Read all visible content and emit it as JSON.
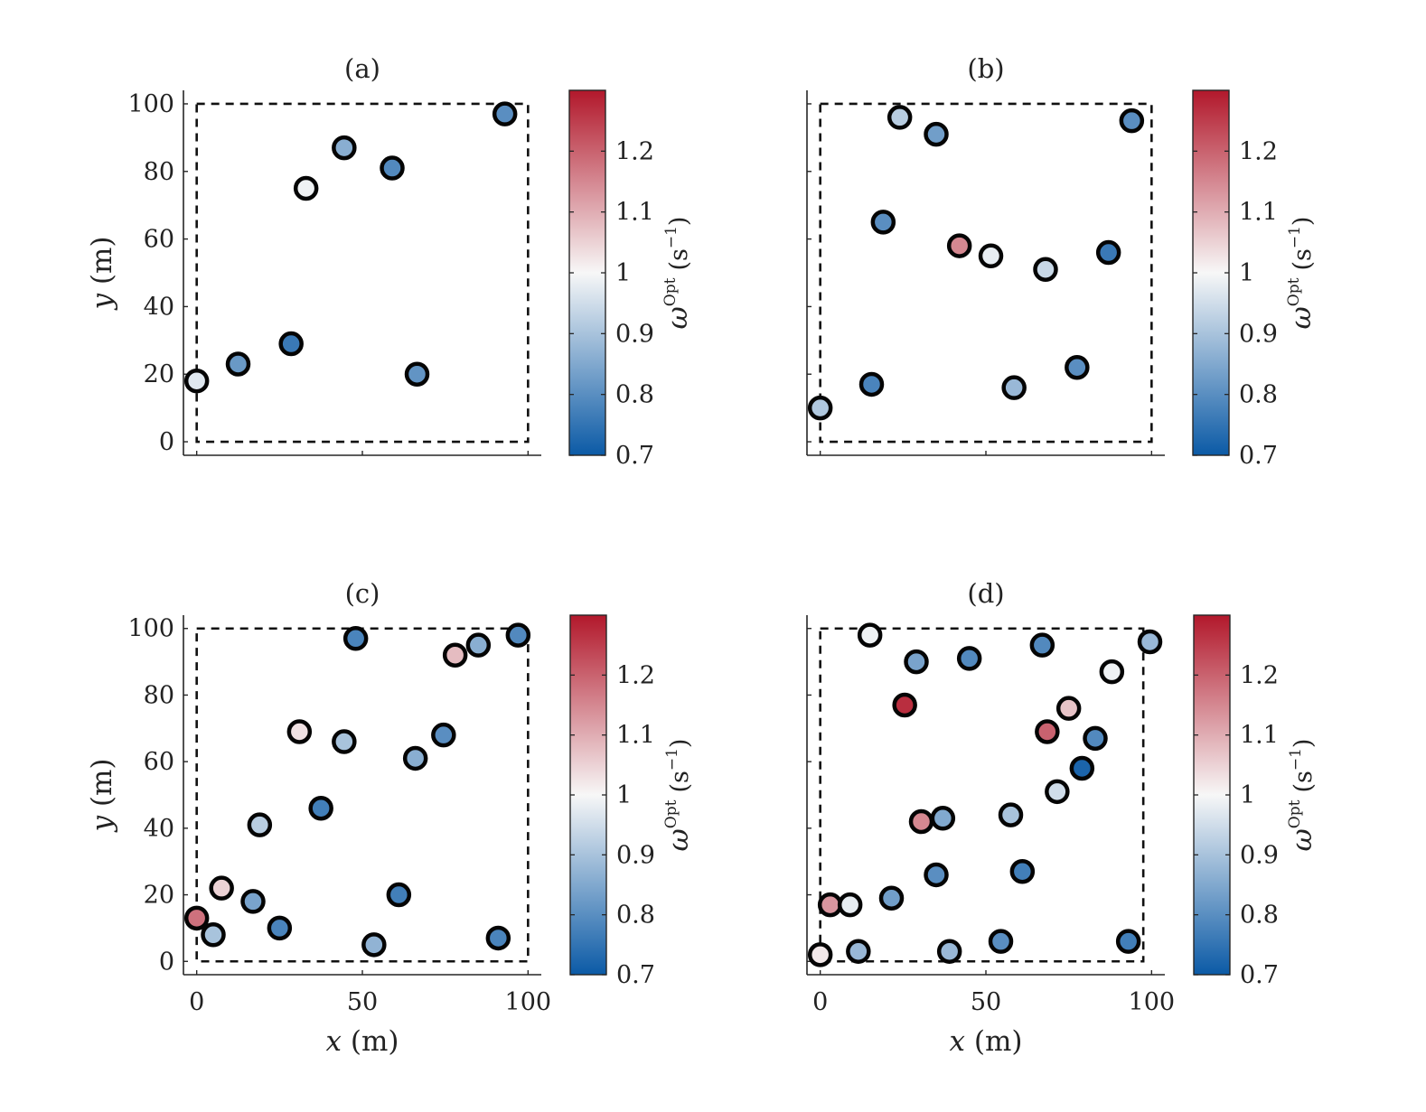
{
  "colormap": {
    "min": 0.7,
    "max": 1.3,
    "center": 1.0,
    "low_color": "#0b5aa6",
    "mid_color": "#f7f7f7",
    "high_color": "#b2182b",
    "ticks": [
      0.7,
      0.8,
      0.9,
      1,
      1.1,
      1.2
    ],
    "tick_labels": [
      "0.7",
      "0.8",
      "0.9",
      "1",
      "1.1",
      "1.2"
    ],
    "label_symbol": "ω",
    "label_sup": "Opt",
    "label_unit": "(s",
    "label_unit_sup": "−1",
    "label_unit_close": ")"
  },
  "chart_data": [
    {
      "type": "scatter",
      "title": "(a)",
      "xlabel_var": "x",
      "xlabel_unit": " (m)",
      "ylabel_var": "y",
      "ylabel_unit": " (m)",
      "xlim": [
        -4,
        104
      ],
      "ylim": [
        -4,
        104
      ],
      "xticks": [
        0,
        50,
        100
      ],
      "xtick_labels": [
        "0",
        "50",
        "100"
      ],
      "show_xtick_labels": false,
      "yticks": [
        0,
        20,
        40,
        60,
        80,
        100
      ],
      "ytick_labels": [
        "0",
        "20",
        "40",
        "60",
        "80",
        "100"
      ],
      "show_ytick_labels": true,
      "boundary": [
        0,
        100,
        0,
        100
      ],
      "points": [
        {
          "x": 0,
          "y": 18,
          "value": 0.97
        },
        {
          "x": 12.5,
          "y": 23,
          "value": 0.82
        },
        {
          "x": 28.5,
          "y": 29,
          "value": 0.76
        },
        {
          "x": 33,
          "y": 75,
          "value": 0.99
        },
        {
          "x": 44.5,
          "y": 87,
          "value": 0.86
        },
        {
          "x": 59,
          "y": 81,
          "value": 0.79
        },
        {
          "x": 66.5,
          "y": 20,
          "value": 0.81
        },
        {
          "x": 93,
          "y": 97,
          "value": 0.8
        }
      ]
    },
    {
      "type": "scatter",
      "title": "(b)",
      "xlabel_var": "x",
      "xlabel_unit": " (m)",
      "ylabel_var": "y",
      "ylabel_unit": " (m)",
      "xlim": [
        -4,
        104
      ],
      "ylim": [
        -4,
        104
      ],
      "xticks": [
        0,
        50,
        100
      ],
      "xtick_labels": [
        "0",
        "50",
        "100"
      ],
      "show_xtick_labels": false,
      "yticks": [
        0,
        20,
        40,
        60,
        80,
        100
      ],
      "ytick_labels": [
        "0",
        "20",
        "40",
        "60",
        "80",
        "100"
      ],
      "show_ytick_labels": false,
      "boundary": [
        0,
        100,
        0,
        100
      ],
      "points": [
        {
          "x": 0,
          "y": 10,
          "value": 0.91
        },
        {
          "x": 24,
          "y": 96,
          "value": 0.92
        },
        {
          "x": 35,
          "y": 91,
          "value": 0.83
        },
        {
          "x": 19,
          "y": 65,
          "value": 0.8
        },
        {
          "x": 42,
          "y": 58,
          "value": 1.15
        },
        {
          "x": 51.5,
          "y": 55,
          "value": 0.98
        },
        {
          "x": 68,
          "y": 51,
          "value": 0.94
        },
        {
          "x": 87,
          "y": 56,
          "value": 0.76
        },
        {
          "x": 15.5,
          "y": 17,
          "value": 0.78
        },
        {
          "x": 58.5,
          "y": 16,
          "value": 0.88
        },
        {
          "x": 77.5,
          "y": 22,
          "value": 0.8
        },
        {
          "x": 94,
          "y": 95,
          "value": 0.8
        }
      ]
    },
    {
      "type": "scatter",
      "title": "(c)",
      "xlabel_var": "x",
      "xlabel_unit": " (m)",
      "ylabel_var": "y",
      "ylabel_unit": " (m)",
      "xlim": [
        -4,
        104
      ],
      "ylim": [
        -4,
        104
      ],
      "xticks": [
        0,
        50,
        100
      ],
      "xtick_labels": [
        "0",
        "50",
        "100"
      ],
      "show_xtick_labels": true,
      "yticks": [
        0,
        20,
        40,
        60,
        80,
        100
      ],
      "ytick_labels": [
        "0",
        "20",
        "40",
        "60",
        "80",
        "100"
      ],
      "show_ytick_labels": true,
      "boundary": [
        0,
        100,
        0,
        100
      ],
      "points": [
        {
          "x": 0,
          "y": 13,
          "value": 1.18
        },
        {
          "x": 5,
          "y": 8,
          "value": 0.9
        },
        {
          "x": 7.5,
          "y": 22,
          "value": 1.05
        },
        {
          "x": 17,
          "y": 18,
          "value": 0.84
        },
        {
          "x": 25,
          "y": 10,
          "value": 0.78
        },
        {
          "x": 19,
          "y": 41,
          "value": 0.92
        },
        {
          "x": 31,
          "y": 69,
          "value": 1.03
        },
        {
          "x": 37.5,
          "y": 46,
          "value": 0.77
        },
        {
          "x": 44.5,
          "y": 66,
          "value": 0.9
        },
        {
          "x": 48,
          "y": 97,
          "value": 0.78
        },
        {
          "x": 53.5,
          "y": 5,
          "value": 0.87
        },
        {
          "x": 61,
          "y": 20,
          "value": 0.77
        },
        {
          "x": 66,
          "y": 61,
          "value": 0.86
        },
        {
          "x": 74.5,
          "y": 68,
          "value": 0.8
        },
        {
          "x": 78,
          "y": 92,
          "value": 1.08
        },
        {
          "x": 85,
          "y": 95,
          "value": 0.86
        },
        {
          "x": 91,
          "y": 7,
          "value": 0.78
        },
        {
          "x": 97,
          "y": 98,
          "value": 0.79
        }
      ]
    },
    {
      "type": "scatter",
      "title": "(d)",
      "xlabel_var": "x",
      "xlabel_unit": " (m)",
      "ylabel_var": "y",
      "ylabel_unit": " (m)",
      "xlim": [
        -4,
        104
      ],
      "ylim": [
        -4,
        104
      ],
      "xticks": [
        0,
        50,
        100
      ],
      "xtick_labels": [
        "0",
        "50",
        "100"
      ],
      "show_xtick_labels": true,
      "yticks": [
        0,
        20,
        40,
        60,
        80,
        100
      ],
      "ytick_labels": [
        "0",
        "20",
        "40",
        "60",
        "80",
        "100"
      ],
      "show_ytick_labels": false,
      "boundary": [
        0,
        97.5,
        0,
        100
      ],
      "points": [
        {
          "x": 0,
          "y": 2,
          "value": 1.02
        },
        {
          "x": 3,
          "y": 17,
          "value": 1.13
        },
        {
          "x": 9,
          "y": 17,
          "value": 0.98
        },
        {
          "x": 11.5,
          "y": 3,
          "value": 0.88
        },
        {
          "x": 15,
          "y": 98,
          "value": 0.99
        },
        {
          "x": 21.5,
          "y": 19,
          "value": 0.83
        },
        {
          "x": 25.5,
          "y": 77,
          "value": 1.27
        },
        {
          "x": 29,
          "y": 90,
          "value": 0.84
        },
        {
          "x": 30.5,
          "y": 42,
          "value": 1.15
        },
        {
          "x": 35,
          "y": 26,
          "value": 0.8
        },
        {
          "x": 37,
          "y": 43,
          "value": 0.85
        },
        {
          "x": 39,
          "y": 3,
          "value": 0.88
        },
        {
          "x": 45,
          "y": 91,
          "value": 0.79
        },
        {
          "x": 54.5,
          "y": 6,
          "value": 0.8
        },
        {
          "x": 57.5,
          "y": 44,
          "value": 0.9
        },
        {
          "x": 61,
          "y": 27,
          "value": 0.77
        },
        {
          "x": 67,
          "y": 95,
          "value": 0.79
        },
        {
          "x": 68.5,
          "y": 69,
          "value": 1.2
        },
        {
          "x": 71.5,
          "y": 51,
          "value": 0.95
        },
        {
          "x": 75,
          "y": 76,
          "value": 1.07
        },
        {
          "x": 79,
          "y": 58,
          "value": 0.72
        },
        {
          "x": 83,
          "y": 67,
          "value": 0.79
        },
        {
          "x": 88,
          "y": 87,
          "value": 0.99
        },
        {
          "x": 93,
          "y": 6,
          "value": 0.77
        },
        {
          "x": 99.5,
          "y": 96,
          "value": 0.88
        }
      ]
    }
  ]
}
